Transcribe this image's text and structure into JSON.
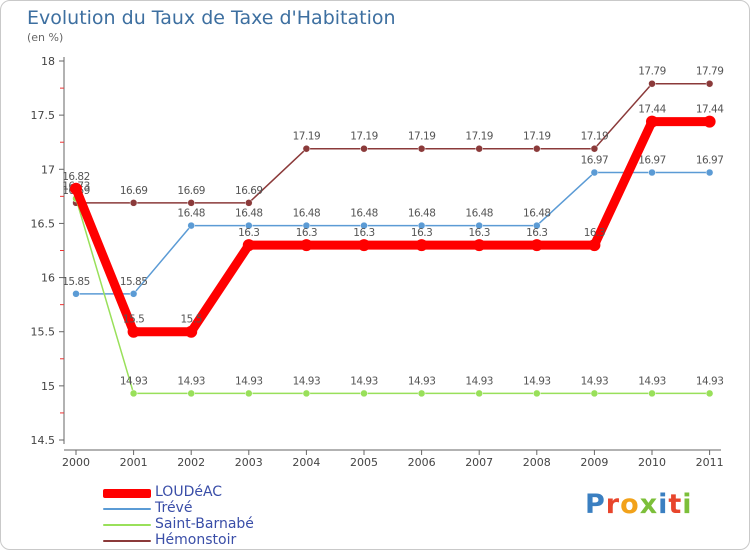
{
  "header": {
    "title": "Evolution du Taux de Taxe d'Habitation",
    "subtitle": "(en %)"
  },
  "logo": {
    "text": "Proxiti",
    "colors": [
      "#3a7fc1",
      "#e8452c",
      "#f2a21a",
      "#7cbf3a",
      "#3a7fc1",
      "#e8452c",
      "#7cbf3a"
    ]
  },
  "chart_data": {
    "type": "line",
    "x": [
      2000,
      2001,
      2002,
      2003,
      2004,
      2005,
      2006,
      2007,
      2008,
      2009,
      2010,
      2011
    ],
    "ylim": [
      14.5,
      18
    ],
    "yticks": [
      "14.5",
      "15",
      "15.5",
      "16",
      "16.5",
      "17",
      "17.5",
      "18"
    ],
    "grid": false,
    "legend_position": "bottom-left",
    "series": [
      {
        "name": "LOUDéAC",
        "color": "#ff0000",
        "values": [
          16.82,
          15.5,
          15.5,
          16.3,
          16.3,
          16.3,
          16.3,
          16.3,
          16.3,
          16.3,
          17.44,
          17.44
        ],
        "labels": [
          "16.82",
          "15.5",
          "15.5",
          "16.3",
          "16.3",
          "16.3",
          "16.3",
          "16.3",
          "16.3",
          "16.3",
          "17.44",
          "17.44"
        ]
      },
      {
        "name": "Trévé",
        "color": "#5b9bd5",
        "values": [
          15.85,
          15.85,
          16.48,
          16.48,
          16.48,
          16.48,
          16.48,
          16.48,
          16.48,
          16.97,
          16.97,
          16.97
        ],
        "labels": [
          "15.85",
          "15.85",
          "16.48",
          "16.48",
          "16.48",
          "16.48",
          "16.48",
          "16.48",
          "16.48",
          "16.97",
          "16.97",
          "16.97"
        ]
      },
      {
        "name": "Saint-Barnabé",
        "color": "#99e05a",
        "values": [
          16.73,
          14.93,
          14.93,
          14.93,
          14.93,
          14.93,
          14.93,
          14.93,
          14.93,
          14.93,
          14.93,
          14.93
        ],
        "labels": [
          "16.73",
          "14.93",
          "14.93",
          "14.93",
          "14.93",
          "14.93",
          "14.93",
          "14.93",
          "14.93",
          "14.93",
          "14.93",
          "14.93"
        ]
      },
      {
        "name": "Hémonstoir",
        "color": "#8b3a3a",
        "values": [
          16.69,
          16.69,
          16.69,
          16.69,
          17.19,
          17.19,
          17.19,
          17.19,
          17.19,
          17.19,
          17.79,
          17.79
        ],
        "labels": [
          "16.69",
          "16.69",
          "16.69",
          "16.69",
          "17.19",
          "17.19",
          "17.19",
          "17.19",
          "17.19",
          "17.19",
          "17.79",
          "17.79"
        ]
      }
    ]
  }
}
